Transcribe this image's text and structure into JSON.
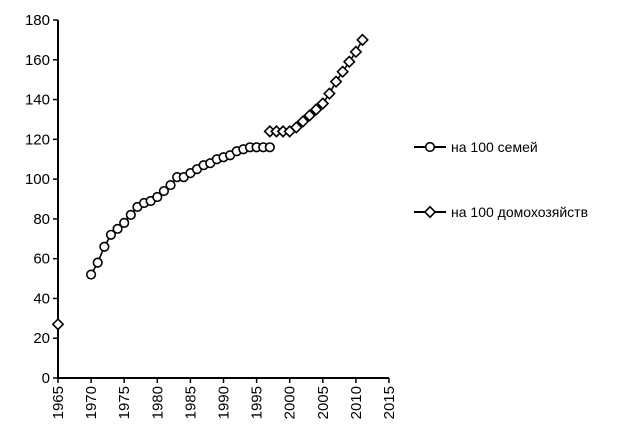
{
  "chart_data": {
    "type": "line",
    "title": "",
    "xlabel": "",
    "ylabel": "",
    "xlim": [
      1965,
      2015
    ],
    "ylim": [
      0,
      180
    ],
    "x_ticks": [
      "1965",
      "1970",
      "1975",
      "1980",
      "1985",
      "1990",
      "1995",
      "2000",
      "2005",
      "2010",
      "2015"
    ],
    "y_ticks": [
      "0",
      "20",
      "40",
      "60",
      "80",
      "100",
      "120",
      "140",
      "160",
      "180"
    ],
    "grid": false,
    "legend_position": "right",
    "series": [
      {
        "name": "на 100 семей",
        "marker": "circle",
        "color": "#000000",
        "points": [
          [
            1970,
            52
          ],
          [
            1971,
            58
          ],
          [
            1972,
            66
          ],
          [
            1973,
            72
          ],
          [
            1974,
            75
          ],
          [
            1975,
            78
          ],
          [
            1976,
            82
          ],
          [
            1977,
            86
          ],
          [
            1978,
            88
          ],
          [
            1979,
            89
          ],
          [
            1980,
            91
          ],
          [
            1981,
            94
          ],
          [
            1982,
            97
          ],
          [
            1983,
            101
          ],
          [
            1984,
            101
          ],
          [
            1985,
            103
          ],
          [
            1986,
            105
          ],
          [
            1987,
            107
          ],
          [
            1988,
            108
          ],
          [
            1989,
            110
          ],
          [
            1990,
            111
          ],
          [
            1991,
            112
          ],
          [
            1992,
            114
          ],
          [
            1993,
            115
          ],
          [
            1994,
            116
          ],
          [
            1995,
            116
          ],
          [
            1996,
            116
          ],
          [
            1997,
            116
          ]
        ]
      },
      {
        "name": "на 100 домохозяйств",
        "marker": "diamond",
        "color": "#000000",
        "points": [
          [
            1965,
            27
          ],
          [
            1997,
            124
          ],
          [
            1998,
            124
          ],
          [
            1999,
            124
          ],
          [
            2000,
            124
          ],
          [
            2001,
            126
          ],
          [
            2002,
            129
          ],
          [
            2003,
            132
          ],
          [
            2004,
            135
          ],
          [
            2005,
            138
          ],
          [
            2006,
            143
          ],
          [
            2007,
            149
          ],
          [
            2008,
            154
          ],
          [
            2009,
            159
          ],
          [
            2010,
            164
          ],
          [
            2011,
            170
          ]
        ]
      }
    ]
  }
}
